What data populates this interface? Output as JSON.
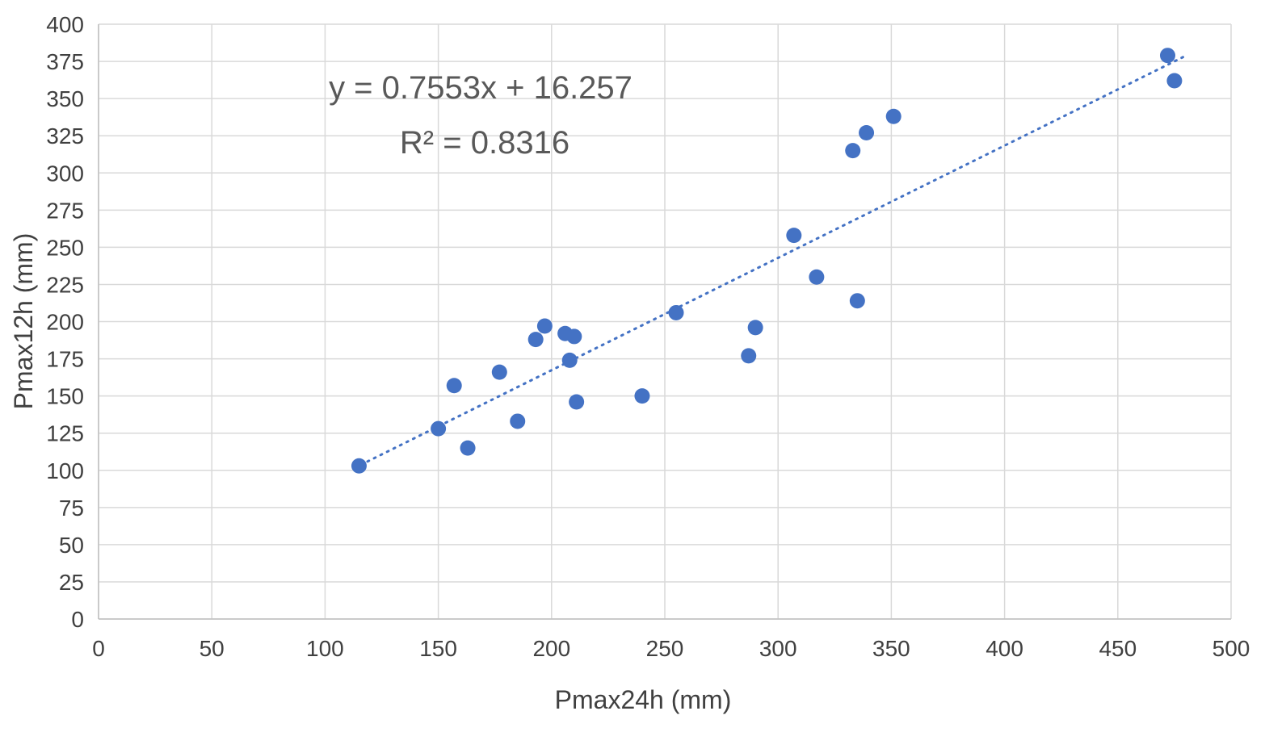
{
  "chart_data": {
    "type": "scatter",
    "title": "",
    "xlabel": "Pmax24h (mm)",
    "ylabel": "Pmax12h (mm)",
    "xlim": [
      0,
      500
    ],
    "ylim": [
      0,
      400
    ],
    "x_tick_step": 50,
    "y_tick_step": 25,
    "grid": true,
    "legend": "none",
    "annotation": {
      "equation": "y = 0.7553x + 16.257",
      "r_squared": "R² = 0.8316"
    },
    "trendline": {
      "slope": 0.7553,
      "intercept": 16.257,
      "x_start": 113,
      "x_end": 479,
      "style": "dotted"
    },
    "points": [
      [
        115,
        103
      ],
      [
        150,
        128
      ],
      [
        157,
        157
      ],
      [
        163,
        115
      ],
      [
        177,
        166
      ],
      [
        185,
        133
      ],
      [
        193,
        188
      ],
      [
        197,
        197
      ],
      [
        206,
        192
      ],
      [
        210,
        190
      ],
      [
        208,
        174
      ],
      [
        211,
        146
      ],
      [
        240,
        150
      ],
      [
        255,
        206
      ],
      [
        287,
        177
      ],
      [
        290,
        196
      ],
      [
        307,
        258
      ],
      [
        317,
        230
      ],
      [
        333,
        315
      ],
      [
        335,
        214
      ],
      [
        339,
        327
      ],
      [
        351,
        338
      ],
      [
        472,
        379
      ],
      [
        475,
        362
      ]
    ],
    "colors": {
      "point": "#4472C4",
      "trendline": "#4472C4",
      "gridline": "#D9D9D9",
      "axis_line": "#BFBFBF",
      "tick_text": "#404040",
      "annotation_text": "#595959"
    }
  }
}
